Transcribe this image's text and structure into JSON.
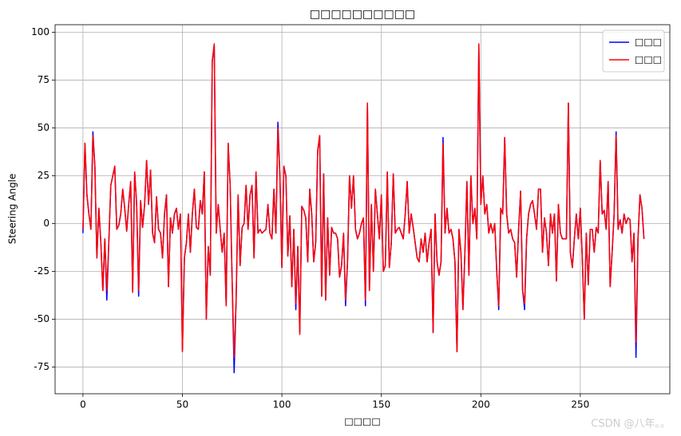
{
  "chart_data": {
    "type": "line",
    "title": "□□□□□□□□□□",
    "x_label": "□□□□",
    "y_label": "Steering Angle",
    "watermark": "CSDN @八年。。",
    "grid": true,
    "legend": "upper right",
    "xlim": [
      -14,
      295
    ],
    "ylim": [
      -89,
      104
    ],
    "xticks": [
      0,
      50,
      100,
      150,
      200,
      250
    ],
    "yticks": [
      -75,
      -50,
      -25,
      0,
      25,
      50,
      75,
      100
    ],
    "x": [
      0,
      1,
      2,
      3,
      4,
      5,
      6,
      7,
      8,
      9,
      10,
      11,
      12,
      13,
      14,
      15,
      16,
      17,
      18,
      19,
      20,
      21,
      22,
      23,
      24,
      25,
      26,
      27,
      28,
      29,
      30,
      31,
      32,
      33,
      34,
      35,
      36,
      37,
      38,
      39,
      40,
      41,
      42,
      43,
      44,
      45,
      46,
      47,
      48,
      49,
      50,
      51,
      52,
      53,
      54,
      55,
      56,
      57,
      58,
      59,
      60,
      61,
      62,
      63,
      64,
      65,
      66,
      67,
      68,
      69,
      70,
      71,
      72,
      73,
      74,
      75,
      76,
      77,
      78,
      79,
      80,
      81,
      82,
      83,
      84,
      85,
      86,
      87,
      88,
      89,
      90,
      91,
      92,
      93,
      94,
      95,
      96,
      97,
      98,
      99,
      100,
      101,
      102,
      103,
      104,
      105,
      106,
      107,
      108,
      109,
      110,
      111,
      112,
      113,
      114,
      115,
      116,
      117,
      118,
      119,
      120,
      121,
      122,
      123,
      124,
      125,
      126,
      127,
      128,
      129,
      130,
      131,
      132,
      133,
      134,
      135,
      136,
      137,
      138,
      139,
      140,
      141,
      142,
      143,
      144,
      145,
      146,
      147,
      148,
      149,
      150,
      151,
      152,
      153,
      154,
      155,
      156,
      157,
      158,
      159,
      160,
      161,
      162,
      163,
      164,
      165,
      166,
      167,
      168,
      169,
      170,
      171,
      172,
      173,
      174,
      175,
      176,
      177,
      178,
      179,
      180,
      181,
      182,
      183,
      184,
      185,
      186,
      187,
      188,
      189,
      190,
      191,
      192,
      193,
      194,
      195,
      196,
      197,
      198,
      199,
      200,
      201,
      202,
      203,
      204,
      205,
      206,
      207,
      208,
      209,
      210,
      211,
      212,
      213,
      214,
      215,
      216,
      217,
      218,
      219,
      220,
      221,
      222,
      223,
      224,
      225,
      226,
      227,
      228,
      229,
      230,
      231,
      232,
      233,
      234,
      235,
      236,
      237,
      238,
      239,
      240,
      241,
      242,
      243,
      244,
      245,
      246,
      247,
      248,
      249,
      250,
      251,
      252,
      253,
      254,
      255,
      256,
      257,
      258,
      259,
      260,
      261,
      262,
      263,
      264,
      265,
      266,
      267,
      268,
      269,
      270,
      271,
      272,
      273,
      274,
      275,
      276,
      277,
      278,
      279,
      280,
      281,
      282
    ],
    "series": [
      {
        "name": "□□□",
        "color": "#0000ff",
        "values": [
          -5,
          42,
          15,
          5,
          -3,
          48,
          30,
          -18,
          8,
          -10,
          -35,
          -8,
          -40,
          -10,
          20,
          25,
          30,
          -3,
          -1,
          5,
          18,
          8,
          -4,
          10,
          22,
          -35,
          27,
          10,
          -38,
          12,
          -2,
          10,
          33,
          10,
          28,
          -5,
          -10,
          14,
          -3,
          -5,
          -18,
          5,
          15,
          -33,
          3,
          -5,
          5,
          8,
          -3,
          5,
          -66,
          -18,
          -10,
          5,
          -15,
          5,
          18,
          -2,
          -3,
          12,
          5,
          27,
          -50,
          -12,
          -27,
          85,
          93,
          -5,
          10,
          -3,
          -15,
          -5,
          -43,
          42,
          20,
          -30,
          -78,
          -40,
          15,
          -22,
          -2,
          0,
          20,
          -3,
          15,
          20,
          -18,
          27,
          -5,
          -3,
          -5,
          -4,
          -3,
          10,
          -5,
          -8,
          18,
          -5,
          53,
          25,
          -23,
          30,
          25,
          -17,
          4,
          -33,
          -3,
          -45,
          -12,
          -57,
          9,
          7,
          3,
          -20,
          18,
          5,
          -20,
          -10,
          38,
          46,
          -38,
          26,
          -40,
          3,
          -27,
          -2,
          -5,
          -5,
          -8,
          -28,
          -22,
          -5,
          -43,
          -20,
          25,
          8,
          25,
          -3,
          -8,
          -5,
          0,
          3,
          -43,
          63,
          -35,
          10,
          -25,
          18,
          5,
          -8,
          15,
          -25,
          -22,
          27,
          -23,
          -10,
          26,
          -5,
          -3,
          -2,
          -5,
          -8,
          5,
          22,
          -5,
          5,
          -2,
          -10,
          -18,
          -20,
          -8,
          -15,
          -5,
          -20,
          -10,
          -3,
          -57,
          5,
          -20,
          -27,
          -20,
          45,
          -5,
          8,
          -5,
          -3,
          -8,
          -20,
          -67,
          -3,
          -15,
          -45,
          -15,
          22,
          -27,
          25,
          0,
          8,
          -8,
          93,
          10,
          25,
          5,
          10,
          -5,
          0,
          -5,
          0,
          -25,
          -45,
          8,
          5,
          45,
          5,
          -5,
          -3,
          -8,
          -10,
          -28,
          -3,
          17,
          -35,
          -45,
          -8,
          5,
          10,
          12,
          5,
          -3,
          18,
          18,
          -15,
          3,
          -5,
          -22,
          5,
          -5,
          5,
          -30,
          10,
          -5,
          -8,
          -8,
          -8,
          63,
          -15,
          -23,
          -8,
          5,
          -8,
          8,
          -18,
          -50,
          -5,
          -32,
          -3,
          -3,
          -15,
          -2,
          -5,
          33,
          5,
          7,
          -3,
          22,
          -33,
          -15,
          5,
          48,
          -3,
          2,
          -5,
          5,
          0,
          3,
          2,
          -20,
          -5,
          -70,
          -8,
          15,
          8,
          -8
        ]
      },
      {
        "name": "□□□",
        "color": "#ff0000",
        "values": [
          -3,
          42,
          15,
          5,
          -3,
          46,
          30,
          -18,
          8,
          -10,
          -35,
          -8,
          -35,
          -10,
          20,
          25,
          30,
          -3,
          -1,
          5,
          18,
          8,
          -4,
          10,
          22,
          -36,
          27,
          10,
          -35,
          12,
          -2,
          10,
          33,
          10,
          28,
          -5,
          -10,
          14,
          -3,
          -5,
          -18,
          5,
          15,
          -33,
          3,
          -5,
          5,
          8,
          -3,
          5,
          -67,
          -18,
          -10,
          5,
          -15,
          5,
          18,
          -2,
          -3,
          12,
          5,
          27,
          -50,
          -12,
          -27,
          85,
          94,
          -5,
          10,
          -3,
          -15,
          -5,
          -43,
          42,
          20,
          -30,
          -70,
          -40,
          15,
          -22,
          -2,
          0,
          20,
          -3,
          15,
          20,
          -18,
          27,
          -5,
          -3,
          -5,
          -4,
          -3,
          10,
          -5,
          -8,
          18,
          -5,
          50,
          25,
          -23,
          30,
          25,
          -17,
          4,
          -33,
          -3,
          -42,
          -12,
          -58,
          9,
          7,
          3,
          -20,
          18,
          5,
          -20,
          -10,
          38,
          46,
          -38,
          26,
          -40,
          3,
          -27,
          -2,
          -5,
          -5,
          -8,
          -28,
          -22,
          -5,
          -40,
          -20,
          25,
          8,
          25,
          -3,
          -8,
          -5,
          0,
          3,
          -40,
          63,
          -35,
          10,
          -25,
          18,
          5,
          -8,
          15,
          -25,
          -22,
          27,
          -23,
          -10,
          26,
          -5,
          -3,
          -2,
          -5,
          -8,
          5,
          22,
          -5,
          5,
          -2,
          -10,
          -18,
          -20,
          -8,
          -15,
          -5,
          -20,
          -10,
          -3,
          -57,
          5,
          -20,
          -27,
          -20,
          42,
          -5,
          8,
          -5,
          -3,
          -8,
          -20,
          -67,
          -3,
          -15,
          -45,
          -15,
          22,
          -27,
          25,
          0,
          8,
          -8,
          94,
          10,
          25,
          5,
          10,
          -5,
          0,
          -5,
          0,
          -25,
          -43,
          8,
          5,
          45,
          5,
          -5,
          -3,
          -8,
          -10,
          -28,
          -3,
          17,
          -35,
          -42,
          -8,
          5,
          10,
          12,
          5,
          -3,
          18,
          18,
          -15,
          3,
          -5,
          -22,
          5,
          -5,
          5,
          -30,
          10,
          -5,
          -8,
          -8,
          -8,
          63,
          -15,
          -23,
          -8,
          5,
          -8,
          8,
          -18,
          -50,
          -5,
          -32,
          -3,
          -3,
          -15,
          -2,
          -5,
          33,
          5,
          7,
          -3,
          22,
          -33,
          -15,
          5,
          46,
          -3,
          2,
          -5,
          5,
          0,
          3,
          2,
          -20,
          -5,
          -62,
          -8,
          15,
          8,
          -8
        ]
      }
    ]
  }
}
